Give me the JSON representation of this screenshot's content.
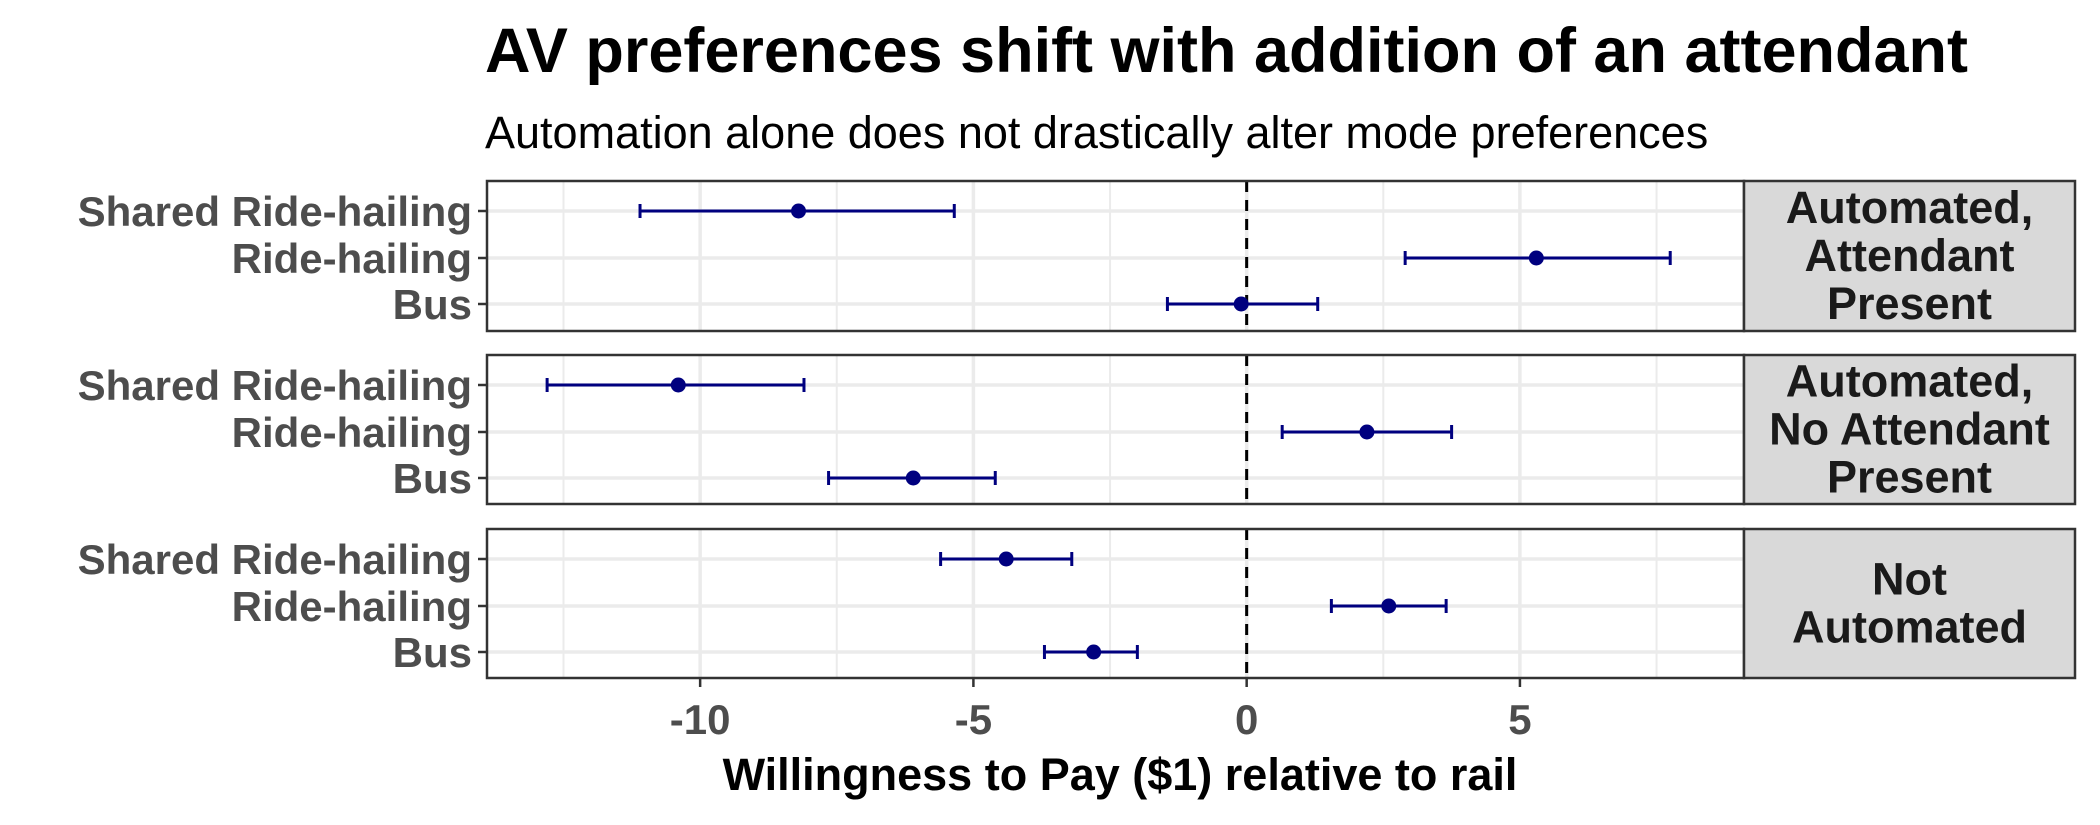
{
  "chart_data": {
    "type": "scatter",
    "subtype": "point-with-error-bars, faceted by row",
    "title": "AV preferences shift with addition of an attendant",
    "subtitle": "Automation alone does not drastically alter mode preferences",
    "xlabel": "Willingness to Pay ($1) relative to rail",
    "ylabel": "",
    "xlim": [
      -13.9,
      9.1
    ],
    "xticks": [
      -10,
      -5,
      0,
      5
    ],
    "xtick_labels": [
      "-10",
      "-5",
      "0",
      "5"
    ],
    "reference_line": {
      "x": 0,
      "style": "dashed"
    },
    "categories": [
      "Shared Ride-hailing",
      "Ride-hailing",
      "Bus"
    ],
    "grid": true,
    "legend": "none",
    "colors": {
      "point": "#00007f",
      "errorbar": "#00007f",
      "strip_fill": "#d9d9d9",
      "grid": "#ebebeb",
      "panel_border": "#333333"
    },
    "facets": [
      {
        "strip_lines": [
          "Automated,",
          "Attendant",
          "Present"
        ],
        "points": [
          {
            "category": "Shared Ride-hailing",
            "estimate": -8.2,
            "lower": -11.1,
            "upper": -5.35
          },
          {
            "category": "Ride-hailing",
            "estimate": 5.3,
            "lower": 2.9,
            "upper": 7.75
          },
          {
            "category": "Bus",
            "estimate": -0.1,
            "lower": -1.45,
            "upper": 1.3
          }
        ]
      },
      {
        "strip_lines": [
          "Automated,",
          "No Attendant",
          "Present"
        ],
        "points": [
          {
            "category": "Shared Ride-hailing",
            "estimate": -10.4,
            "lower": -12.8,
            "upper": -8.1
          },
          {
            "category": "Ride-hailing",
            "estimate": 2.2,
            "lower": 0.65,
            "upper": 3.75
          },
          {
            "category": "Bus",
            "estimate": -6.1,
            "lower": -7.65,
            "upper": -4.6
          }
        ]
      },
      {
        "strip_lines": [
          "Not",
          "Automated"
        ],
        "points": [
          {
            "category": "Shared Ride-hailing",
            "estimate": -4.4,
            "lower": -5.6,
            "upper": -3.2
          },
          {
            "category": "Ride-hailing",
            "estimate": 2.6,
            "lower": 1.55,
            "upper": 3.65
          },
          {
            "category": "Bus",
            "estimate": -2.8,
            "lower": -3.7,
            "upper": -2.0
          }
        ]
      }
    ]
  }
}
